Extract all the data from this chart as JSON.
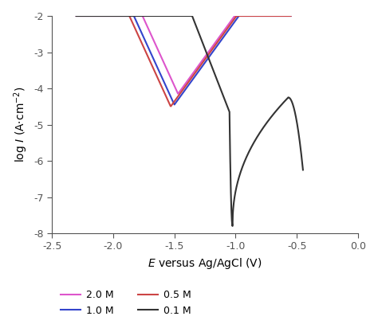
{
  "title": "",
  "xlabel": "$E$ versus Ag/AgCl (V)",
  "ylabel": "log $I$ (A·cm$^{-2}$)",
  "xlim": [
    -2.5,
    0.0
  ],
  "ylim": [
    -8,
    -2
  ],
  "xticks": [
    -2.5,
    -2.0,
    -1.5,
    -1.0,
    -0.5,
    0.0
  ],
  "yticks": [
    -8,
    -7,
    -6,
    -5,
    -4,
    -3,
    -2
  ],
  "colors": {
    "2.0M": "#dd55cc",
    "1.0M": "#3344cc",
    "0.5M": "#cc4444",
    "0.1M": "#333333"
  },
  "background": "#ffffff",
  "legend_labels": [
    "2.0 M",
    "1.0 M",
    "0.5 M",
    "0.1 M"
  ]
}
